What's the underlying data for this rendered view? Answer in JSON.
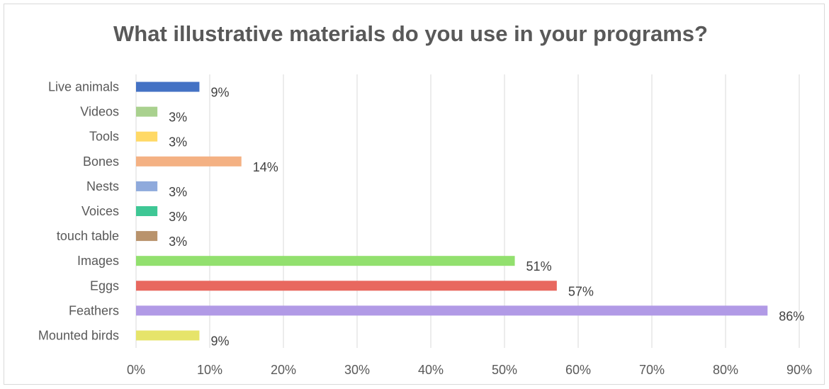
{
  "chart_data": {
    "type": "bar",
    "orientation": "horizontal",
    "title": "What illustrative materials do you use in your programs?",
    "xlabel": "",
    "ylabel": "",
    "categories": [
      "Live animals",
      "Videos",
      "Tools",
      "Bones",
      "Nests",
      "Voices",
      "touch table",
      "Images",
      "Eggs",
      "Feathers",
      "Mounted birds"
    ],
    "values": [
      8.6,
      2.9,
      2.9,
      14.3,
      2.9,
      2.9,
      2.9,
      51.4,
      57.1,
      85.7,
      8.6
    ],
    "data_labels": [
      "9%",
      "3%",
      "3%",
      "14%",
      "3%",
      "3%",
      "3%",
      "51%",
      "57%",
      "86%",
      "9%"
    ],
    "colors": [
      "#4472c4",
      "#a9d18e",
      "#ffd966",
      "#f4b183",
      "#8faadc",
      "#3ec795",
      "#b9936c",
      "#92e06e",
      "#e8685f",
      "#b19ae6",
      "#e6e46a"
    ],
    "xlim": [
      0,
      90
    ],
    "xticks": [
      "0%",
      "10%",
      "20%",
      "30%",
      "40%",
      "50%",
      "60%",
      "70%",
      "80%",
      "90%"
    ],
    "grid": true,
    "legend": "none"
  }
}
